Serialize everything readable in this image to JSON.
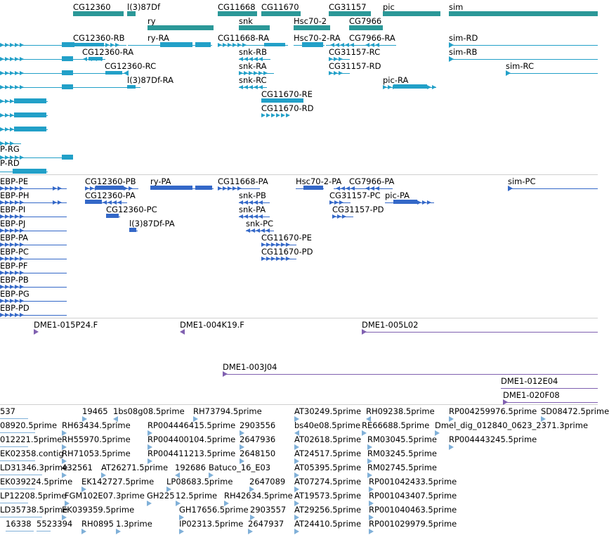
{
  "colors": {
    "gene": "#2b9898",
    "mrna": "#22a0c8",
    "cds": "#3468c8",
    "clone": "#8060b0",
    "est": "#80b0d8",
    "sep": "#d0d0d0"
  },
  "tracks": [
    {
      "id": "gene-track",
      "items": [
        {
          "label": "CG12360"
        },
        {
          "label": "l(3)87Df"
        },
        {
          "label": "CG11668"
        },
        {
          "label": "CG11670"
        },
        {
          "label": "CG31157"
        },
        {
          "label": "pic"
        },
        {
          "label": "sim"
        },
        {
          "label": "ry"
        },
        {
          "label": "snk"
        },
        {
          "label": "Hsc70-2"
        },
        {
          "label": "CG7966"
        }
      ]
    },
    {
      "id": "mrna-track",
      "items": [
        {
          "label": "CG12360-RB"
        },
        {
          "label": "ry-RA"
        },
        {
          "label": "CG11668-RA"
        },
        {
          "label": "Hsc70-2-RA"
        },
        {
          "label": "CG7966-RA"
        },
        {
          "label": "sim-RD"
        },
        {
          "label": "CG12360-RA"
        },
        {
          "label": "snk-RB"
        },
        {
          "label": "CG31157-RC"
        },
        {
          "label": "sim-RB"
        },
        {
          "label": "CG12360-RC"
        },
        {
          "label": "snk-RA"
        },
        {
          "label": "CG31157-RD"
        },
        {
          "label": "sim-RC"
        },
        {
          "label": "l(3)87Df-RA"
        },
        {
          "label": "snk-RC"
        },
        {
          "label": "pic-RA"
        },
        {
          "label": "CG11670-RE"
        },
        {
          "label": "CG11670-RD"
        },
        {
          "label": "P-RG"
        },
        {
          "label": "P-RD"
        }
      ]
    },
    {
      "id": "cds-track",
      "items": [
        {
          "label": "EBP-PE"
        },
        {
          "label": "CG12360-PB"
        },
        {
          "label": "ry-PA"
        },
        {
          "label": "CG11668-PA"
        },
        {
          "label": "Hsc70-2-PA"
        },
        {
          "label": "CG7966-PA"
        },
        {
          "label": "sim-PC"
        },
        {
          "label": "EBP-PH"
        },
        {
          "label": "CG12360-PA"
        },
        {
          "label": "snk-PB"
        },
        {
          "label": "CG31157-PC"
        },
        {
          "label": "pic-PA"
        },
        {
          "label": "EBP-PI"
        },
        {
          "label": "CG12360-PC"
        },
        {
          "label": "snk-PA"
        },
        {
          "label": "CG31157-PD"
        },
        {
          "label": "EBP-PJ"
        },
        {
          "label": "l(3)87Df-PA"
        },
        {
          "label": "snk-PC"
        },
        {
          "label": "EBP-PA"
        },
        {
          "label": "CG11670-PE"
        },
        {
          "label": "EBP-PC"
        },
        {
          "label": "CG11670-PD"
        },
        {
          "label": "EBP-PF"
        },
        {
          "label": "EBP-PB"
        },
        {
          "label": "EBP-PG"
        },
        {
          "label": "EBP-PD"
        }
      ]
    },
    {
      "id": "clone-track",
      "items": [
        {
          "label": "DME1-015P24.F"
        },
        {
          "label": "DME1-004K19.F"
        },
        {
          "label": "DME1-005L02"
        },
        {
          "label": "DME1-003J04"
        },
        {
          "label": "DME1-012E04"
        },
        {
          "label": "DME1-020F08"
        }
      ]
    },
    {
      "id": "est-track",
      "items": [
        {
          "label": "537"
        },
        {
          "label": "19465"
        },
        {
          "label": "1bs08g08.5prime"
        },
        {
          "label": "RH73794.5prime"
        },
        {
          "label": "AT30249.5prime"
        },
        {
          "label": "RH09238.5prime"
        },
        {
          "label": "RP004259976.5prime"
        },
        {
          "label": "SD08472.5prime"
        },
        {
          "label": "08920.5prime"
        },
        {
          "label": "RH63434.5prime"
        },
        {
          "label": "RP004446415.5prime"
        },
        {
          "label": "2903556"
        },
        {
          "label": "bs40e08.5prime"
        },
        {
          "label": "RE66688.5prime"
        },
        {
          "label": "Dmel_dig_012840_0623_2371.3prime"
        },
        {
          "label": "012221.5prime"
        },
        {
          "label": "RH55970.5prime"
        },
        {
          "label": "RP004400104.5prime"
        },
        {
          "label": "2647936"
        },
        {
          "label": "AT02618.5prime"
        },
        {
          "label": "RM03045.5prime"
        },
        {
          "label": "RP004443245.5prime"
        },
        {
          "label": "EK02358.contig"
        },
        {
          "label": "RH71053.5prime"
        },
        {
          "label": "RP004411213.5prime"
        },
        {
          "label": "2648150"
        },
        {
          "label": "AT24517.5prime"
        },
        {
          "label": "RM03245.5prime"
        },
        {
          "label": "LD31346.3prime"
        },
        {
          "label": "432561"
        },
        {
          "label": "AT26271.5prime"
        },
        {
          "label": "192686"
        },
        {
          "label": "Batuco_16_E03"
        },
        {
          "label": "AT05395.5prime"
        },
        {
          "label": "RM02745.5prime"
        },
        {
          "label": "EK039224.5prime"
        },
        {
          "label": "EK142727.5prime"
        },
        {
          "label": "LP08683.5prime"
        },
        {
          "label": "2647089"
        },
        {
          "label": "AT07274.5prime"
        },
        {
          "label": "RP001042433.5prime"
        },
        {
          "label": "LP12208.5prime"
        },
        {
          "label": "FGM102E07.3prime"
        },
        {
          "label": "GH225"
        },
        {
          "label": "12.5prime"
        },
        {
          "label": "RH42634.5prime"
        },
        {
          "label": "AT19573.5prime"
        },
        {
          "label": "RP001043407.5prime"
        },
        {
          "label": "LD35738.5prime"
        },
        {
          "label": "EK039359.5prime"
        },
        {
          "label": "GH17656.5prime"
        },
        {
          "label": "2903557"
        },
        {
          "label": "AT29256.5prime"
        },
        {
          "label": "RP001040463.5prime"
        },
        {
          "label": "16338"
        },
        {
          "label": "5523394"
        },
        {
          "label": "RH0895"
        },
        {
          "label": "1.3prime"
        },
        {
          "label": "IP02313.5prime"
        },
        {
          "label": "2647937"
        },
        {
          "label": "AT24410.5prime"
        },
        {
          "label": "RP001029979.5prime"
        }
      ]
    }
  ]
}
